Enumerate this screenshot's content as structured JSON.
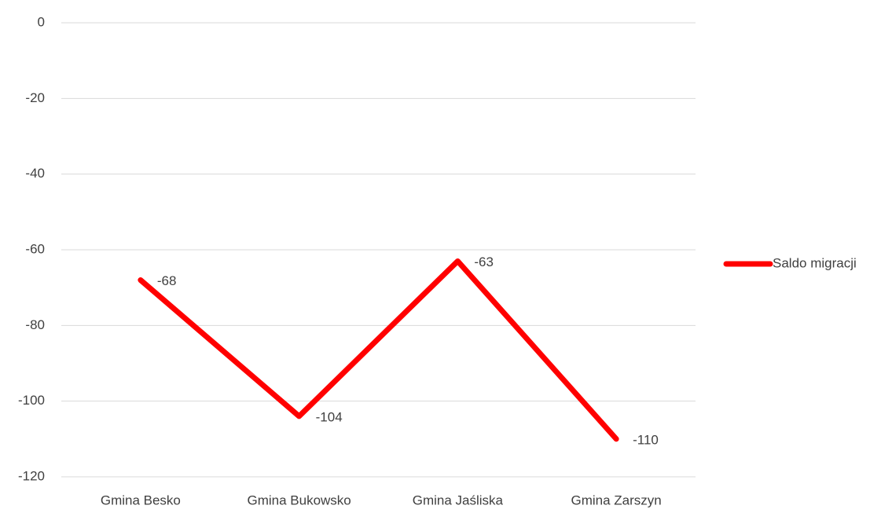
{
  "chart_data": {
    "type": "line",
    "categories": [
      "Gmina Besko",
      "Gmina Bukowsko",
      "Gmina Jaśliska",
      "Gmina Zarszyn"
    ],
    "series": [
      {
        "name": "Saldo migracji",
        "color": "#ff0000",
        "values": [
          -68,
          -104,
          -63,
          -110
        ]
      }
    ],
    "ylim": [
      -120,
      0
    ],
    "yticks": [
      0,
      -20,
      -40,
      -60,
      -80,
      -100,
      -120
    ],
    "grid": true,
    "data_labels": true,
    "legend": "right"
  }
}
